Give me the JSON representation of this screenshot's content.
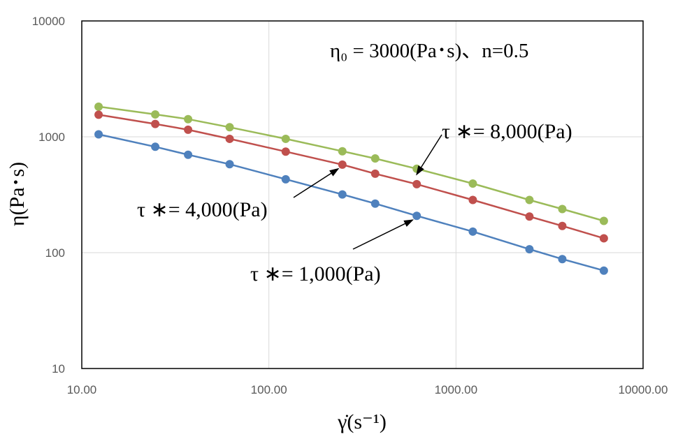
{
  "chart_data": {
    "type": "scatter",
    "xscale": "log",
    "yscale": "log",
    "xlim": [
      10,
      10000
    ],
    "ylim": [
      10,
      10000
    ],
    "grid": true,
    "xlabel": "γ̇(s⁻¹)",
    "ylabel": "η(Pa･s)",
    "x_tick_labels": [
      "10.00",
      "100.00",
      "1000.00",
      "10000.00"
    ],
    "y_tick_labels": [
      "10",
      "100",
      "1000",
      "10000"
    ],
    "parameters_text": "η₀ = 3000(Pa･s)、n=0.5",
    "x": [
      12.3,
      24.7,
      37,
      61.7,
      123,
      247,
      370,
      617,
      1230,
      2470,
      3700,
      6170
    ],
    "series": [
      {
        "color": "#9BBB59",
        "values": [
          1820,
          1560,
          1420,
          1210,
          960,
          750,
          650,
          530,
          395,
          285,
          238,
          188
        ]
      },
      {
        "color": "#C0504D",
        "values": [
          1550,
          1290,
          1150,
          960,
          745,
          575,
          480,
          390,
          285,
          205,
          170,
          133
        ]
      },
      {
        "color": "#4F81BD",
        "values": [
          1050,
          820,
          700,
          580,
          430,
          318,
          265,
          208,
          152,
          107,
          88,
          70
        ]
      }
    ],
    "annotations": [
      {
        "text": "τ ∗= 8,000(Pa)",
        "series_index": 0,
        "point_index": 7
      },
      {
        "text": "τ ∗= 4,000(Pa)",
        "series_index": 1,
        "point_index": 5
      },
      {
        "text": "τ ∗= 1,000(Pa)",
        "series_index": 2,
        "point_index": 7
      }
    ]
  }
}
